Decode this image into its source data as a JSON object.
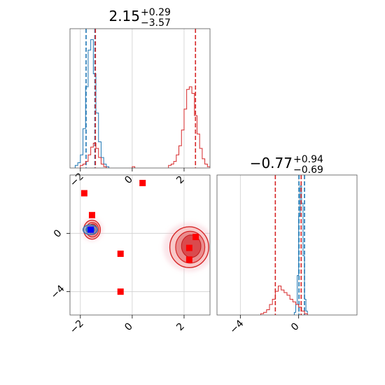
{
  "chart_data": [
    {
      "type": "histogram",
      "panel": "top-left",
      "title": {
        "value": "2.15",
        "plus": "+0.29",
        "minus": "−3.57"
      },
      "xlim": [
        -2.4,
        3.0
      ],
      "x_ticks": [
        -2,
        0,
        2
      ],
      "grid": true,
      "series": [
        {
          "color": "#1f77b4",
          "bins_x": [
            -2.2,
            -2.1,
            -2.0,
            -1.9,
            -1.8,
            -1.7,
            -1.6,
            -1.5,
            -1.4,
            -1.3,
            -1.2,
            -1.1,
            -1.0
          ],
          "heights": [
            0.02,
            0.04,
            0.1,
            0.3,
            0.62,
            0.9,
            0.98,
            0.72,
            0.42,
            0.2,
            0.08,
            0.03,
            0.01
          ],
          "quantile_lines_x": [
            -1.78,
            -1.44
          ]
        },
        {
          "color": "#d62728",
          "bins_x": [
            -2.0,
            -1.9,
            -1.8,
            -1.7,
            -1.6,
            -1.5,
            -1.4,
            -1.3,
            -1.2,
            -1.1,
            0.0,
            1.4,
            1.5,
            1.6,
            1.7,
            1.8,
            1.9,
            2.0,
            2.1,
            2.2,
            2.3,
            2.4,
            2.5,
            2.6,
            2.7,
            2.8,
            2.9
          ],
          "heights": [
            0.02,
            0.03,
            0.05,
            0.1,
            0.16,
            0.19,
            0.15,
            0.08,
            0.03,
            0.01,
            0.01,
            0.02,
            0.03,
            0.05,
            0.1,
            0.17,
            0.29,
            0.45,
            0.6,
            0.62,
            0.57,
            0.4,
            0.26,
            0.15,
            0.07,
            0.03,
            0.01
          ],
          "quantile_lines_x": [
            -1.42,
            2.44
          ]
        }
      ]
    },
    {
      "type": "2d-density",
      "panel": "bottom-left",
      "xlim": [
        -2.4,
        3.0
      ],
      "ylim": [
        -5.6,
        4.0
      ],
      "x_ticks": [
        -2,
        0,
        2
      ],
      "y_ticks": [
        0,
        -4
      ],
      "grid": true,
      "red_markers": [
        [
          -1.85,
          2.75
        ],
        [
          0.4,
          3.45
        ],
        [
          -1.55,
          1.25
        ],
        [
          -0.45,
          -1.4
        ],
        [
          -0.45,
          -4.0
        ],
        [
          2.45,
          -0.25
        ],
        [
          2.2,
          -1.0
        ],
        [
          2.2,
          -1.8
        ]
      ],
      "blue_marker": [
        -1.6,
        0.25
      ],
      "density_regions": [
        {
          "color": "#d62728",
          "center": [
            -1.55,
            0.25
          ],
          "radius": [
            0.32,
            0.65
          ]
        },
        {
          "color": "#d62728",
          "center": [
            2.2,
            -0.95
          ],
          "radius": [
            0.75,
            1.4
          ]
        },
        {
          "color": "#1f77b4",
          "center": [
            -1.62,
            0.25
          ],
          "radius": [
            0.28,
            0.33
          ]
        }
      ]
    },
    {
      "type": "histogram",
      "panel": "bottom-right",
      "title": {
        "value": "−0.77",
        "plus": "+0.94",
        "minus": "−0.69"
      },
      "xlim": [
        -5.6,
        4.0
      ],
      "x_ticks": [
        -4,
        0
      ],
      "grid": true,
      "series": [
        {
          "color": "#1f77b4",
          "bins_x": [
            -0.3,
            -0.2,
            -0.1,
            0.0,
            0.1,
            0.2,
            0.3,
            0.4,
            0.5
          ],
          "heights": [
            0.02,
            0.08,
            0.3,
            0.75,
            0.98,
            0.85,
            0.45,
            0.12,
            0.03
          ],
          "quantile_lines_x": [
            0.02,
            0.4
          ]
        },
        {
          "color": "#d62728",
          "bins_x": [
            -2.6,
            -2.4,
            -2.2,
            -2.0,
            -1.8,
            -1.6,
            -1.4,
            -1.2,
            -1.0,
            -0.8,
            -0.6,
            -0.4,
            -0.2,
            0.0,
            0.2,
            0.4
          ],
          "heights": [
            0.01,
            0.02,
            0.04,
            0.08,
            0.12,
            0.18,
            0.22,
            0.19,
            0.17,
            0.15,
            0.12,
            0.1,
            0.08,
            0.06,
            0.03,
            0.01
          ],
          "quantile_lines_x": [
            -1.6,
            0.17
          ]
        }
      ]
    }
  ]
}
